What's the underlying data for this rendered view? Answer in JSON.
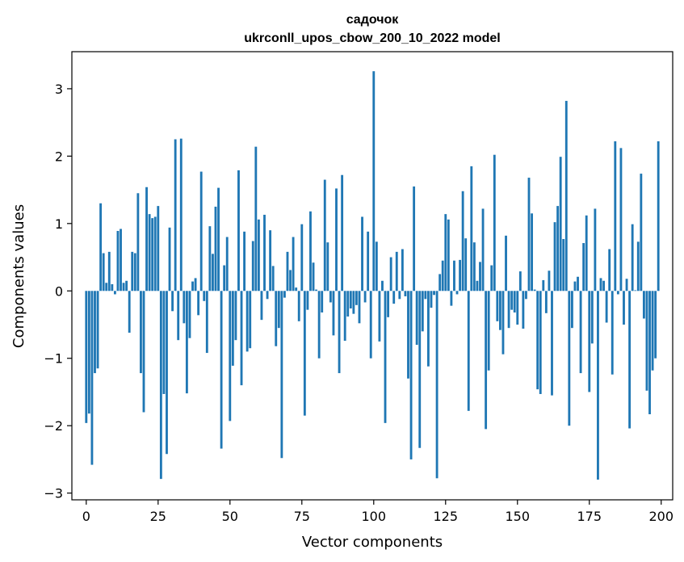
{
  "chart_data": {
    "type": "bar",
    "title_line1": "садочок",
    "title_line2": "ukrconll_upos_cbow_200_10_2022 model",
    "xlabel": "Vector components",
    "ylabel": "Components values",
    "xlim": [
      -5,
      204
    ],
    "ylim": [
      -3.1,
      3.55
    ],
    "xticks": [
      0,
      25,
      50,
      75,
      100,
      125,
      150,
      175,
      200
    ],
    "xtick_labels": [
      "0",
      "25",
      "50",
      "75",
      "100",
      "125",
      "150",
      "175",
      "200"
    ],
    "yticks": [
      -3,
      -2,
      -1,
      0,
      1,
      2,
      3
    ],
    "ytick_labels": [
      "−3",
      "−2",
      "−1",
      "0",
      "1",
      "2",
      "3"
    ],
    "grid": false,
    "bar_color": "#1f77b4",
    "values": [
      -1.96,
      -1.82,
      -2.58,
      -1.22,
      -1.15,
      1.3,
      0.56,
      0.12,
      0.58,
      0.1,
      -0.05,
      0.89,
      0.92,
      0.12,
      0.15,
      -0.62,
      0.58,
      0.56,
      1.45,
      -1.22,
      -1.8,
      1.54,
      1.14,
      1.08,
      1.1,
      1.26,
      -2.79,
      -1.53,
      -2.42,
      0.94,
      -0.3,
      2.25,
      -0.73,
      2.26,
      -0.48,
      -1.52,
      -0.7,
      0.14,
      0.19,
      -0.36,
      1.77,
      -0.15,
      -0.92,
      0.96,
      0.55,
      1.25,
      1.53,
      -2.34,
      0.38,
      0.8,
      -1.93,
      -1.11,
      -0.73,
      1.79,
      -1.4,
      0.88,
      -0.9,
      -0.85,
      0.74,
      2.14,
      1.06,
      -0.43,
      1.13,
      -0.12,
      0.9,
      0.37,
      -0.82,
      -0.55,
      -2.48,
      -0.1,
      0.58,
      0.31,
      0.8,
      0.05,
      -0.45,
      0.99,
      -1.85,
      -0.28,
      1.18,
      0.42,
      0.02,
      -1.0,
      -0.32,
      1.65,
      0.72,
      -0.17,
      -0.66,
      1.52,
      -1.22,
      1.72,
      -0.74,
      -0.38,
      -0.26,
      -0.34,
      -0.21,
      -0.48,
      1.1,
      -0.17,
      0.88,
      -1.0,
      3.26,
      0.73,
      -0.75,
      0.15,
      -1.96,
      -0.39,
      0.5,
      -0.19,
      0.58,
      -0.12,
      0.62,
      -0.08,
      -1.3,
      -2.5,
      1.55,
      -0.8,
      -2.33,
      -0.6,
      -0.12,
      -1.12,
      -0.25,
      -0.06,
      -2.78,
      0.25,
      0.45,
      1.14,
      1.06,
      -0.22,
      0.45,
      -0.05,
      0.46,
      1.48,
      0.78,
      -1.78,
      1.85,
      0.72,
      0.15,
      0.43,
      1.22,
      -2.05,
      -1.18,
      0.38,
      2.02,
      -0.45,
      -0.58,
      -0.94,
      0.82,
      -0.55,
      -0.28,
      -0.32,
      -0.5,
      0.29,
      -0.56,
      -0.12,
      1.68,
      1.15,
      0.02,
      -1.46,
      -1.53,
      0.16,
      -0.33,
      0.3,
      -1.55,
      1.02,
      1.26,
      1.99,
      0.77,
      2.82,
      -2.0,
      -0.55,
      0.14,
      0.21,
      -1.22,
      0.71,
      1.12,
      -1.5,
      -0.78,
      1.22,
      -2.8,
      0.19,
      0.15,
      -0.47,
      0.62,
      -1.24,
      2.22,
      -0.05,
      2.12,
      -0.5,
      0.18,
      -2.04,
      0.99,
      0.01,
      0.73,
      1.74,
      -0.41,
      -1.48,
      -1.83,
      -1.18,
      -1.0,
      2.22
    ]
  }
}
